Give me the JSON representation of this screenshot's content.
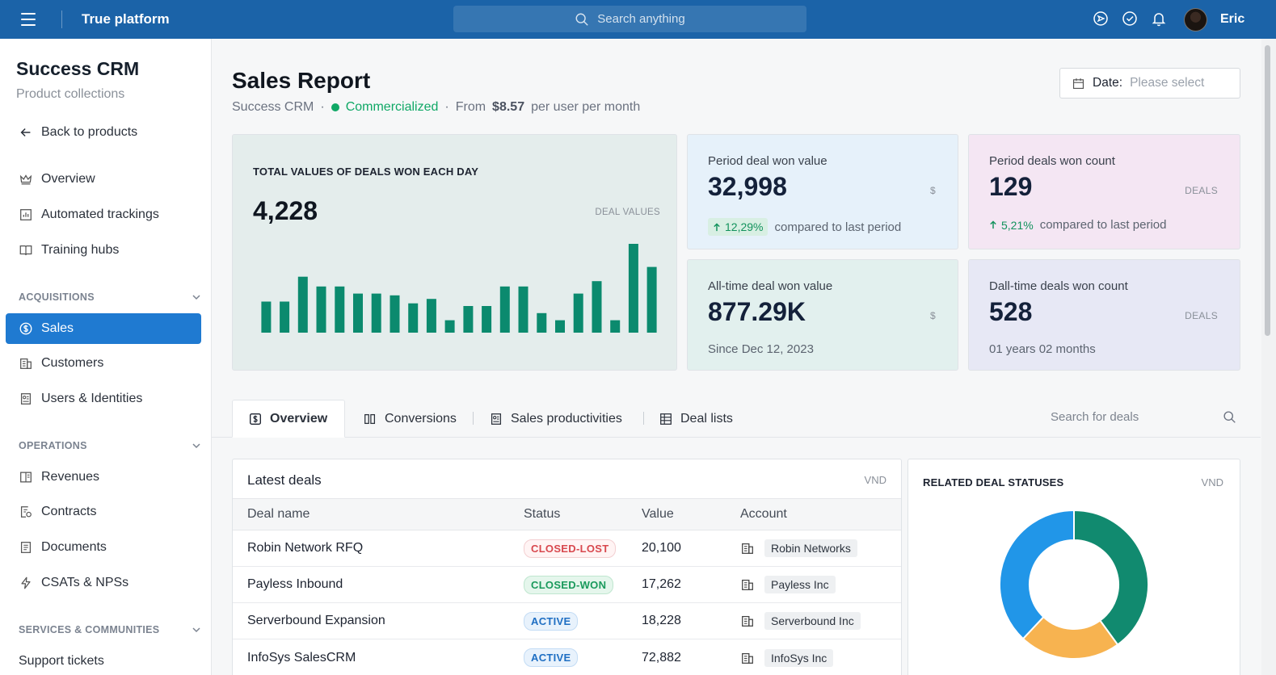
{
  "topbar": {
    "brand": "True platform",
    "search_placeholder": "Search anything",
    "user_name": "Eric"
  },
  "sidebar": {
    "title": "Success CRM",
    "subtitle": "Product collections",
    "back_label": "Back to products",
    "items_top": [
      {
        "label": "Overview",
        "icon": "crown-icon"
      },
      {
        "label": "Automated trackings",
        "icon": "chart-icon"
      },
      {
        "label": "Training hubs",
        "icon": "book-icon"
      }
    ],
    "section_acquisitions": "ACQUISITIONS",
    "items_acq": [
      {
        "label": "Sales",
        "icon": "dollar-circle-icon"
      },
      {
        "label": "Customers",
        "icon": "building-icon"
      },
      {
        "label": "Users & Identities",
        "icon": "id-card-icon"
      }
    ],
    "section_operations": "OPERATIONS",
    "items_ops": [
      {
        "label": "Revenues",
        "icon": "ledger-icon"
      },
      {
        "label": "Contracts",
        "icon": "contract-icon"
      },
      {
        "label": "Documents",
        "icon": "document-icon"
      },
      {
        "label": "CSATs & NPSs",
        "icon": "lightning-icon"
      }
    ],
    "section_services": "SERVICES & COMMUNITIES",
    "items_svc": [
      {
        "label": "Support tickets"
      }
    ]
  },
  "page": {
    "title": "Sales Report",
    "product": "Success CRM",
    "status": "Commercialized",
    "price_prefix": "From",
    "price": "$8.57",
    "price_suffix": "per user per month",
    "date_label": "Date:",
    "date_placeholder": "Please select"
  },
  "big_card": {
    "title": "TOTAL VALUES OF DEALS WON EACH DAY",
    "value": "4,228",
    "unit": "DEAL VALUES"
  },
  "chart_data": {
    "type": "bar",
    "values": [
      35,
      35,
      63,
      52,
      52,
      44,
      44,
      42,
      33,
      38,
      14,
      30,
      30,
      52,
      52,
      22,
      14,
      44,
      58,
      14,
      100,
      74
    ],
    "ylim": [
      0,
      100
    ]
  },
  "stats": [
    {
      "label": "Period deal won value",
      "value": "32,998",
      "unit": "$",
      "change": "12,29%",
      "footer": "compared to last period"
    },
    {
      "label": "Period deals won count",
      "value": "129",
      "unit": "DEALS",
      "change": "5,21%",
      "footer": "compared to last period"
    },
    {
      "label": "All-time deal won value",
      "value": "877.29K",
      "unit": "$",
      "footer": "Since Dec 12, 2023"
    },
    {
      "label": "Dall-time deals won count",
      "value": "528",
      "unit": "DEALS",
      "footer": "01 years 02 months"
    }
  ],
  "tabs": [
    {
      "label": "Overview"
    },
    {
      "label": "Conversions"
    },
    {
      "label": "Sales productivities"
    },
    {
      "label": "Deal lists"
    }
  ],
  "deal_search_placeholder": "Search for deals",
  "latest_deals": {
    "title": "Latest deals",
    "unit": "VND",
    "columns": [
      "Deal name",
      "Status",
      "Value",
      "Account"
    ],
    "rows": [
      {
        "name": "Robin Network RFQ",
        "status": "CLOSED-LOST",
        "value": "20,100",
        "account": "Robin Networks"
      },
      {
        "name": "Payless Inbound",
        "status": "CLOSED-WON",
        "value": "17,262",
        "account": "Payless Inc"
      },
      {
        "name": "Serverbound Expansion",
        "status": "ACTIVE",
        "value": "18,228",
        "account": "Serverbound Inc"
      },
      {
        "name": "InfoSys SalesCRM",
        "status": "ACTIVE",
        "value": "72,882",
        "account": "InfoSys Inc"
      }
    ]
  },
  "related_statuses": {
    "title": "RELATED DEAL STATUSES",
    "unit": "VND",
    "chart_data": {
      "type": "pie",
      "values": [
        40,
        22,
        38
      ],
      "colors": [
        "#118a6f",
        "#f7b350",
        "#2196e8"
      ]
    }
  },
  "colors": {
    "topbar": "#1b63a8",
    "accent": "#1f7ad1",
    "bar": "#0b8a6e",
    "green": "#10a866"
  }
}
